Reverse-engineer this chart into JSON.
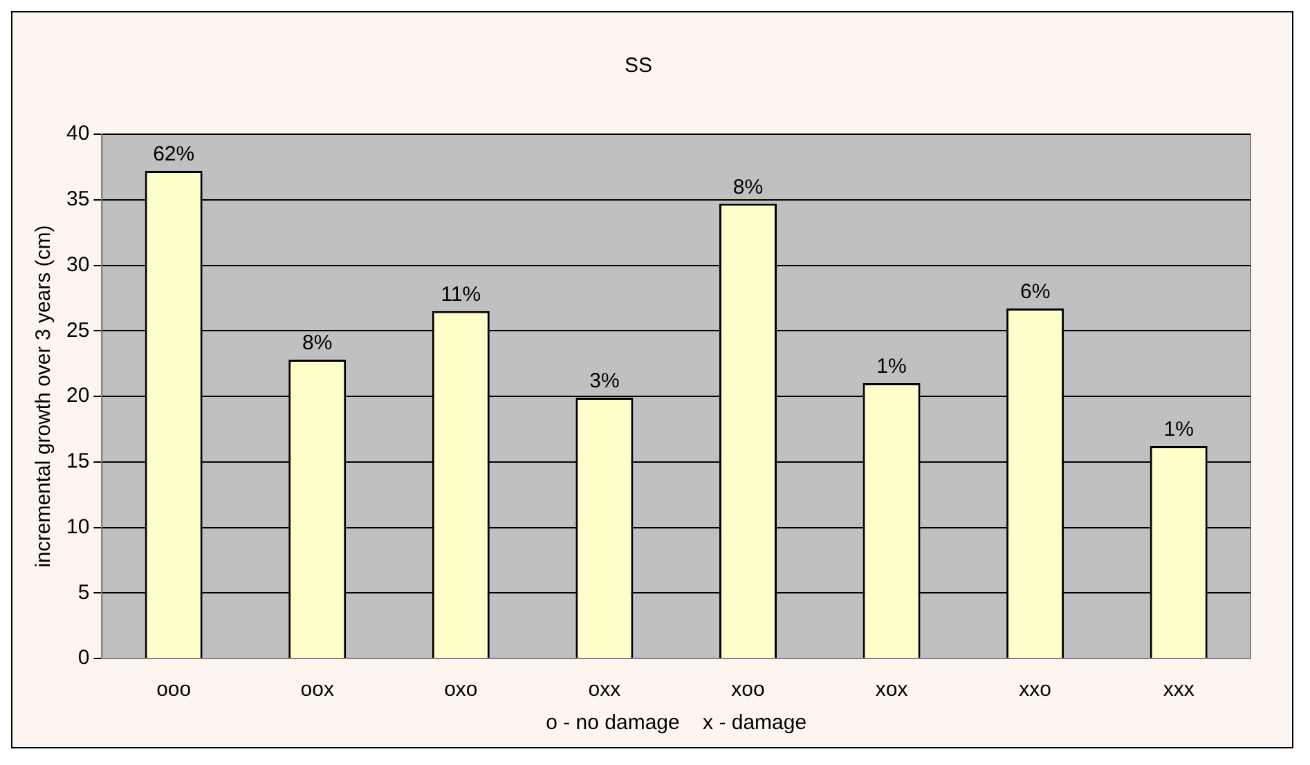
{
  "chart_data": {
    "type": "bar",
    "title": "SS",
    "xlabel": "o - no damage    x - damage",
    "ylabel": "incremental growth over 3 years (cm)",
    "categories": [
      "ooo",
      "oox",
      "oxo",
      "oxx",
      "xoo",
      "xox",
      "xxo",
      "xxx"
    ],
    "values": [
      37.2,
      22.8,
      26.5,
      19.9,
      34.7,
      21.0,
      26.7,
      16.2
    ],
    "annotations": [
      {
        "text": "62%",
        "x": "ooo",
        "y": 37.2
      },
      {
        "text": "8%",
        "x": "oox",
        "y": 22.8
      },
      {
        "text": "11%",
        "x": "oxo",
        "y": 26.5
      },
      {
        "text": "3%",
        "x": "oxx",
        "y": 19.9
      },
      {
        "text": "8%",
        "x": "xoo",
        "y": 34.7
      },
      {
        "text": "1%",
        "x": "xox",
        "y": 21.0
      },
      {
        "text": "6%",
        "x": "xxo",
        "y": 26.7
      },
      {
        "text": "1%",
        "x": "xxx",
        "y": 16.2
      }
    ],
    "color": "#ffffcc",
    "ylim": [
      0,
      40
    ],
    "yticks": [
      0,
      5,
      10,
      15,
      20,
      25,
      30,
      35,
      40
    ],
    "grid": "y",
    "legend": false
  }
}
